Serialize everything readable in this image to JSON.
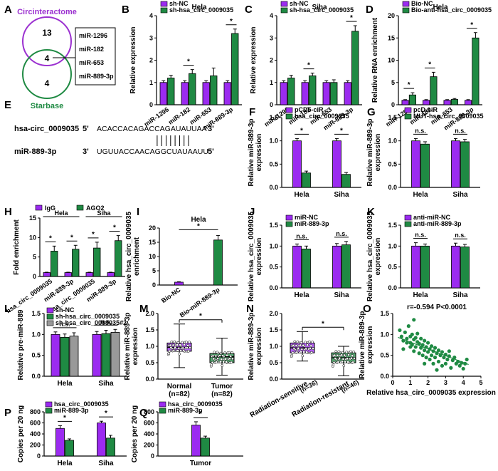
{
  "colors": {
    "purple": "#9b2bf0",
    "green": "#1f8a43",
    "gray": "#999999",
    "venn_purple": "#9b30d0",
    "venn_green": "#1f8a43"
  },
  "panel_labels": [
    "A",
    "B",
    "C",
    "D",
    "E",
    "F",
    "G",
    "H",
    "I",
    "J",
    "K",
    "L",
    "M",
    "N",
    "O",
    "P",
    "Q"
  ],
  "venn": {
    "top_label": "Circinteractome",
    "bottom_label": "Starbase",
    "top_only": "13",
    "overlap": "4",
    "bottom_only": "4",
    "mirnas": [
      "miR-1296",
      "miR-182",
      "miR-653",
      "miR-889-3p"
    ]
  },
  "sequence": {
    "rna1_name": "hsa-circ_0009035",
    "rna1_p5": "5'",
    "rna1_seq": "ACACCACAGACCAGAUAUUAA",
    "rna1_p3": "3'",
    "rna2_name": "miR-889-3p",
    "rna2_p3": "3'",
    "rna2_seq": "UGUUACCAACAGGCUAUAAUU",
    "rna2_p5": "5'"
  },
  "chart_data": [
    {
      "id": "B",
      "type": "bar",
      "title": "Hela",
      "ylabel": "Relative expression",
      "ylim": [
        0,
        4
      ],
      "yticks": [
        0,
        1,
        2,
        3,
        4
      ],
      "categories": [
        "miR-1296",
        "miR-182",
        "miR-653",
        "miR-889-3p"
      ],
      "series": [
        {
          "name": "sh-NC",
          "values": [
            1.0,
            1.0,
            1.0,
            1.0
          ],
          "errors": [
            0.08,
            0.08,
            0.08,
            0.08
          ]
        },
        {
          "name": "sh-hsa_circ_0009035",
          "values": [
            1.2,
            1.4,
            1.3,
            3.2
          ],
          "errors": [
            0.12,
            0.18,
            0.35,
            0.2
          ]
        }
      ],
      "annotations": [
        {
          "text": "*",
          "group": 1
        },
        {
          "text": "*",
          "group": 3
        }
      ]
    },
    {
      "id": "C",
      "type": "bar",
      "title": "Siha",
      "ylabel": "Relative expression",
      "ylim": [
        0,
        4
      ],
      "yticks": [
        0,
        1,
        2,
        3,
        4
      ],
      "categories": [
        "miR-1296",
        "miR-182",
        "miR-653",
        "miR-889-3p"
      ],
      "series": [
        {
          "name": "sh-NC",
          "values": [
            1.0,
            1.0,
            1.0,
            1.0
          ],
          "errors": [
            0.08,
            0.08,
            0.08,
            0.08
          ]
        },
        {
          "name": "sh-hsa_circ_0009035",
          "values": [
            1.2,
            1.3,
            1.0,
            3.3
          ],
          "errors": [
            0.12,
            0.12,
            0.12,
            0.25
          ]
        }
      ],
      "annotations": [
        {
          "text": "*",
          "group": 1
        },
        {
          "text": "*",
          "group": 3
        }
      ]
    },
    {
      "id": "D",
      "type": "bar",
      "title": "Hela",
      "ylabel": "Relative RNA enrichment",
      "ylim": [
        0,
        20
      ],
      "yticks": [
        0,
        5,
        10,
        15,
        20
      ],
      "categories": [
        "miR-1296",
        "miR-182",
        "miR-653",
        "miR-889-3p"
      ],
      "series": [
        {
          "name": "Bio-NC",
          "values": [
            1.0,
            1.0,
            1.0,
            1.0
          ],
          "errors": [
            0.15,
            0.15,
            0.15,
            0.15
          ]
        },
        {
          "name": "Bio-anti-hsa_circ_0009035",
          "values": [
            2.2,
            6.3,
            1.2,
            15.0
          ],
          "errors": [
            0.5,
            1.0,
            0.2,
            1.2
          ]
        }
      ],
      "annotations": [
        {
          "text": "*",
          "group": 0
        },
        {
          "text": "*",
          "group": 1
        },
        {
          "text": "*",
          "group": 3
        }
      ]
    },
    {
      "id": "F",
      "type": "bar",
      "title": "",
      "ylabel": "Relative miR-889-3p expression",
      "ylim": [
        0,
        1.5
      ],
      "yticks": [
        0.0,
        0.5,
        1.0,
        1.5
      ],
      "categories": [
        "Hela",
        "Siha"
      ],
      "series": [
        {
          "name": "pCD5-ciR",
          "values": [
            1.0,
            1.0
          ],
          "errors": [
            0.05,
            0.05
          ]
        },
        {
          "name": "hsa_circ_0009035",
          "values": [
            0.31,
            0.28
          ],
          "errors": [
            0.04,
            0.04
          ]
        }
      ],
      "annotations": [
        {
          "text": "*",
          "group": 0
        },
        {
          "text": "*",
          "group": 1
        }
      ]
    },
    {
      "id": "G",
      "type": "bar",
      "title": "",
      "ylabel": "Relative miR-889-3p expression",
      "ylim": [
        0,
        1.5
      ],
      "yticks": [
        0.0,
        0.5,
        1.0,
        1.5
      ],
      "categories": [
        "Hela",
        "Siha"
      ],
      "series": [
        {
          "name": "pcD-ciR",
          "values": [
            1.0,
            1.0
          ],
          "errors": [
            0.05,
            0.05
          ]
        },
        {
          "name": "MUT-hsa_circ_0009035",
          "values": [
            0.93,
            0.98
          ],
          "errors": [
            0.05,
            0.05
          ]
        }
      ],
      "annotations": [
        {
          "text": "n.s.",
          "group": 0
        },
        {
          "text": "n.s.",
          "group": 1
        }
      ]
    },
    {
      "id": "H",
      "type": "bar",
      "title": "",
      "ylabel": "Fold enrichment",
      "ylim": [
        0,
        15
      ],
      "yticks": [
        0,
        5,
        10,
        15
      ],
      "categories": [
        "hsa_circ_0009035",
        "miR-889-3p",
        "hsa_circ_0009035",
        "miR-889-3p"
      ],
      "group_titles": [
        "Hela",
        "Siha"
      ],
      "series": [
        {
          "name": "IgG",
          "values": [
            1.0,
            1.0,
            1.0,
            1.0
          ],
          "errors": [
            0.1,
            0.1,
            0.1,
            0.1
          ]
        },
        {
          "name": "AGO2",
          "values": [
            6.5,
            7.0,
            7.3,
            9.2
          ],
          "errors": [
            1.3,
            1.0,
            1.5,
            1.3
          ]
        }
      ],
      "annotations": [
        {
          "text": "*",
          "group": 0
        },
        {
          "text": "*",
          "group": 1
        },
        {
          "text": "*",
          "group": 2
        },
        {
          "text": "*",
          "group": 3
        }
      ]
    },
    {
      "id": "I",
      "type": "bar",
      "title": "Hela",
      "ylabel": "Relative hsa_circ_0009035 enrichment",
      "ylim": [
        0,
        20
      ],
      "yticks": [
        0,
        5,
        10,
        15,
        20
      ],
      "categories": [
        "Bio-NC",
        "Bio-miR-889-3p"
      ],
      "series": [
        {
          "name": "",
          "values": [
            1.0,
            15.8
          ],
          "errors": [
            0.15,
            1.6
          ]
        }
      ],
      "annotations": [
        {
          "text": "*"
        }
      ]
    },
    {
      "id": "J",
      "type": "bar",
      "title": "",
      "ylabel": "Relative hsa_circ_0009035 expression",
      "ylim": [
        0,
        1.5
      ],
      "yticks": [
        0.0,
        0.5,
        1.0,
        1.5
      ],
      "categories": [
        "Hela",
        "Siha"
      ],
      "series": [
        {
          "name": "miR-NC",
          "values": [
            1.0,
            1.0
          ],
          "errors": [
            0.05,
            0.06
          ]
        },
        {
          "name": "miR-889-3p",
          "values": [
            0.93,
            1.03
          ],
          "errors": [
            0.07,
            0.08
          ]
        }
      ],
      "annotations": [
        {
          "text": "n.s.",
          "group": 0
        },
        {
          "text": "n.s.",
          "group": 1
        }
      ]
    },
    {
      "id": "K",
      "type": "bar",
      "title": "",
      "ylabel": "Relative hsa_circ_0009035 expression",
      "ylim": [
        0,
        1.5
      ],
      "yticks": [
        0.0,
        0.5,
        1.0,
        1.5
      ],
      "categories": [
        "Hela",
        "Siha"
      ],
      "series": [
        {
          "name": "anti-miR-NC",
          "values": [
            1.0,
            1.0
          ],
          "errors": [
            0.08,
            0.07
          ]
        },
        {
          "name": "anti-miR-889-3p",
          "values": [
            1.0,
            0.98
          ],
          "errors": [
            0.05,
            0.06
          ]
        }
      ],
      "annotations": [
        {
          "text": "n.s.",
          "group": 0
        },
        {
          "text": "n.s.",
          "group": 1
        }
      ]
    },
    {
      "id": "L",
      "type": "bar",
      "title": "",
      "ylabel": "Relative pre-miR-889",
      "ylim": [
        0,
        1.5
      ],
      "yticks": [
        0.0,
        0.5,
        1.0,
        1.5
      ],
      "categories": [
        "Hela",
        "Siha"
      ],
      "series": [
        {
          "name": "sh-NC",
          "values": [
            1.0,
            1.0
          ],
          "errors": [
            0.06,
            0.07
          ]
        },
        {
          "name": "sh-hsa_circ_0009035",
          "values": [
            0.93,
            1.02
          ],
          "errors": [
            0.08,
            0.08
          ]
        },
        {
          "name": "sh-hsa_circ_0009035#2",
          "values": [
            0.96,
            1.05
          ],
          "errors": [
            0.08,
            0.07
          ]
        }
      ],
      "annotations": [
        {
          "text": "n.s.",
          "group": 0
        },
        {
          "text": "n.s.",
          "group": 1
        }
      ]
    },
    {
      "id": "M",
      "type": "box",
      "title": "",
      "ylabel": "Relative miR-889-3p expression",
      "ylim": [
        0,
        2.0
      ],
      "yticks": [
        0.0,
        0.5,
        1.0,
        1.5,
        2.0
      ],
      "categories": [
        "Normal",
        "Tumor"
      ],
      "n_labels": [
        "(n=82)",
        "(n=82)"
      ],
      "boxes": [
        {
          "min": 0.35,
          "q1": 0.85,
          "median": 0.97,
          "q3": 1.1,
          "max": 1.68,
          "color": "purple"
        },
        {
          "min": 0.12,
          "q1": 0.5,
          "median": 0.68,
          "q3": 0.78,
          "max": 1.25,
          "color": "green"
        }
      ],
      "annotations": [
        {
          "text": "*"
        }
      ]
    },
    {
      "id": "N",
      "type": "box",
      "title": "",
      "ylabel": "Relative miR-889-3p expression",
      "ylim": [
        0,
        2.0
      ],
      "yticks": [
        0.0,
        0.5,
        1.0,
        1.5,
        2.0
      ],
      "categories": [
        "Radiation-sensitive",
        "Radiation-resistant"
      ],
      "n_labels": [
        "(n=36)",
        "(n=46)"
      ],
      "boxes": [
        {
          "min": 0.55,
          "q1": 0.8,
          "median": 0.95,
          "q3": 1.1,
          "max": 1.45,
          "color": "purple"
        },
        {
          "min": 0.1,
          "q1": 0.5,
          "median": 0.65,
          "q3": 0.8,
          "max": 1.0,
          "color": "green"
        }
      ],
      "annotations": [
        {
          "text": "*"
        }
      ]
    },
    {
      "id": "O",
      "type": "scatter",
      "title": "r=-0.594  P<0.0001",
      "xlabel": "Relative hsa_circ_0009035 expression",
      "ylabel": "Relative miR-889-3p expression",
      "xlim": [
        0,
        5
      ],
      "ylim": [
        0,
        1.5
      ],
      "xticks": [
        0,
        1,
        2,
        3,
        4,
        5
      ],
      "yticks": [
        0.0,
        0.5,
        1.0,
        1.5
      ],
      "points": [
        [
          0.4,
          1.1
        ],
        [
          0.5,
          0.95
        ],
        [
          0.6,
          0.85
        ],
        [
          0.7,
          1.05
        ],
        [
          0.8,
          0.9
        ],
        [
          0.8,
          0.8
        ],
        [
          0.9,
          1.2
        ],
        [
          1.0,
          0.95
        ],
        [
          1.0,
          0.8
        ],
        [
          1.0,
          0.7
        ],
        [
          1.1,
          1.0
        ],
        [
          1.1,
          0.75
        ],
        [
          1.2,
          0.88
        ],
        [
          1.2,
          0.6
        ],
        [
          1.3,
          0.92
        ],
        [
          1.3,
          0.7
        ],
        [
          1.4,
          0.82
        ],
        [
          1.4,
          1.02
        ],
        [
          1.5,
          0.78
        ],
        [
          1.5,
          0.55
        ],
        [
          1.6,
          0.9
        ],
        [
          1.6,
          0.68
        ],
        [
          1.7,
          0.75
        ],
        [
          1.7,
          0.5
        ],
        [
          1.8,
          0.85
        ],
        [
          1.8,
          0.62
        ],
        [
          1.9,
          0.7
        ],
        [
          1.9,
          0.45
        ],
        [
          2.0,
          0.8
        ],
        [
          2.0,
          0.58
        ],
        [
          2.1,
          0.65
        ],
        [
          2.1,
          0.4
        ],
        [
          2.2,
          0.72
        ],
        [
          2.2,
          0.5
        ],
        [
          2.3,
          0.6
        ],
        [
          2.3,
          0.3
        ],
        [
          2.4,
          0.68
        ],
        [
          2.4,
          0.45
        ],
        [
          2.5,
          0.55
        ],
        [
          2.6,
          0.62
        ],
        [
          2.6,
          0.35
        ],
        [
          2.7,
          0.5
        ],
        [
          2.8,
          0.58
        ],
        [
          2.8,
          0.25
        ],
        [
          2.9,
          0.45
        ],
        [
          3.0,
          0.52
        ],
        [
          3.0,
          0.3
        ],
        [
          3.1,
          0.4
        ],
        [
          3.2,
          0.48
        ],
        [
          3.3,
          0.2
        ],
        [
          3.4,
          0.38
        ],
        [
          3.5,
          0.45
        ],
        [
          3.6,
          0.3
        ],
        [
          3.7,
          0.35
        ],
        [
          3.8,
          0.25
        ],
        [
          3.9,
          0.32
        ],
        [
          4.0,
          0.18
        ],
        [
          4.1,
          0.3
        ],
        [
          4.2,
          0.4
        ],
        [
          1.2,
          1.35
        ],
        [
          0.6,
          0.65
        ],
        [
          2.5,
          0.15
        ],
        [
          1.8,
          0.3
        ],
        [
          3.2,
          0.6
        ]
      ],
      "fit": {
        "x0": 0.3,
        "y0": 0.93,
        "x1": 4.3,
        "y1": 0.28
      }
    },
    {
      "id": "P",
      "type": "bar",
      "title": "",
      "ylabel": "Copies per 20 ng",
      "ylim": [
        0,
        800
      ],
      "yticks": [
        0,
        200,
        400,
        600,
        800
      ],
      "categories": [
        "Hela",
        "Siha"
      ],
      "series": [
        {
          "name": "hsa_circ_0009035",
          "values": [
            500,
            600
          ],
          "errors": [
            50,
            30
          ]
        },
        {
          "name": "miR-889-3p",
          "values": [
            285,
            325
          ],
          "errors": [
            25,
            50
          ]
        }
      ],
      "annotations": [
        {
          "text": "*",
          "group": 0
        },
        {
          "text": "*",
          "group": 1
        }
      ]
    },
    {
      "id": "Q",
      "type": "bar",
      "title": "",
      "ylabel": "Copies per 20 ng",
      "ylim": [
        0,
        800
      ],
      "yticks": [
        0,
        200,
        400,
        600,
        800
      ],
      "categories": [
        "Tumor"
      ],
      "series": [
        {
          "name": "hsa_circ_0009035",
          "values": [
            560
          ],
          "errors": [
            60
          ]
        },
        {
          "name": "miR-889-3p",
          "values": [
            325
          ],
          "errors": [
            35
          ]
        }
      ],
      "annotations": [
        {
          "text": "*",
          "group": 0
        }
      ]
    }
  ]
}
